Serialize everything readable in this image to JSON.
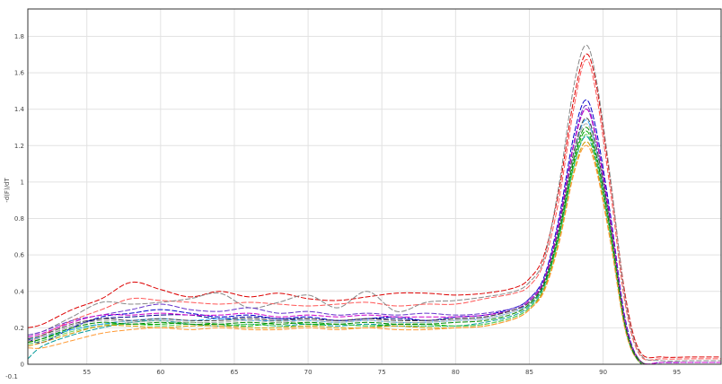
{
  "chart_data": {
    "type": "line",
    "title": "",
    "xlabel": "",
    "ylabel": "-d(F)/dT",
    "xlim": [
      51,
      98
    ],
    "ylim": [
      0,
      1.95
    ],
    "x_ticks": [
      55,
      60,
      65,
      70,
      75,
      80,
      85,
      90,
      95
    ],
    "x_tick_labels": [
      "55",
      "60",
      "65",
      "70",
      "75",
      "80",
      "85",
      "90",
      "95"
    ],
    "y_ticks": [
      0,
      0.2,
      0.4,
      0.6,
      0.8,
      1,
      1.2,
      1.4,
      1.6,
      1.8
    ],
    "y_tick_labels": [
      "0",
      "0.2",
      "0.4",
      "0.6",
      "0.8",
      "1",
      "1.2",
      "1.4",
      "1.6",
      "1.8"
    ],
    "corner_label": "-0.1",
    "grid": true,
    "legend": "none",
    "x": [
      51,
      52,
      54,
      56,
      58,
      60,
      62,
      64,
      66,
      68,
      70,
      72,
      74,
      76,
      78,
      80,
      82,
      84,
      85,
      86,
      87,
      88,
      88.8,
      89.5,
      90.5,
      91.5,
      92.5,
      94,
      96,
      98
    ],
    "series": [
      {
        "color": "#dd0000",
        "values": [
          0.2,
          0.22,
          0.3,
          0.36,
          0.45,
          0.41,
          0.37,
          0.4,
          0.37,
          0.39,
          0.36,
          0.35,
          0.37,
          0.39,
          0.39,
          0.38,
          0.39,
          0.42,
          0.47,
          0.6,
          0.95,
          1.45,
          1.7,
          1.55,
          1.0,
          0.38,
          0.07,
          0.04,
          0.04,
          0.04
        ]
      },
      {
        "color": "#ff5555",
        "values": [
          0.12,
          0.16,
          0.24,
          0.3,
          0.36,
          0.35,
          0.34,
          0.33,
          0.34,
          0.33,
          0.32,
          0.33,
          0.34,
          0.32,
          0.33,
          0.33,
          0.36,
          0.39,
          0.43,
          0.56,
          0.9,
          1.4,
          1.67,
          1.5,
          0.95,
          0.33,
          0.05,
          0.03,
          0.03,
          0.03
        ]
      },
      {
        "color": "#888888",
        "values": [
          0.16,
          0.18,
          0.26,
          0.34,
          0.33,
          0.34,
          0.36,
          0.39,
          0.31,
          0.34,
          0.38,
          0.31,
          0.4,
          0.29,
          0.34,
          0.35,
          0.37,
          0.4,
          0.45,
          0.58,
          0.98,
          1.52,
          1.75,
          1.58,
          1.02,
          0.36,
          0.06,
          0.02,
          0.02,
          0.02
        ]
      },
      {
        "color": "#0000cc",
        "values": [
          0.14,
          0.12,
          0.2,
          0.26,
          0.28,
          0.3,
          0.28,
          0.26,
          0.27,
          0.25,
          0.26,
          0.24,
          0.25,
          0.26,
          0.24,
          0.26,
          0.27,
          0.31,
          0.36,
          0.48,
          0.8,
          1.25,
          1.45,
          1.3,
          0.82,
          0.25,
          0.02,
          0.01,
          0.01,
          0.01
        ]
      },
      {
        "color": "#000088",
        "values": [
          0.13,
          0.15,
          0.21,
          0.25,
          0.26,
          0.27,
          0.27,
          0.25,
          0.26,
          0.25,
          0.25,
          0.24,
          0.25,
          0.25,
          0.24,
          0.25,
          0.26,
          0.3,
          0.35,
          0.46,
          0.76,
          1.2,
          1.4,
          1.25,
          0.78,
          0.22,
          0.02,
          0.0,
          0.0,
          0.0
        ]
      },
      {
        "color": "#6633cc",
        "values": [
          0.16,
          0.18,
          0.24,
          0.27,
          0.3,
          0.33,
          0.3,
          0.29,
          0.31,
          0.28,
          0.29,
          0.27,
          0.28,
          0.27,
          0.28,
          0.27,
          0.28,
          0.31,
          0.36,
          0.47,
          0.78,
          1.21,
          1.42,
          1.26,
          0.8,
          0.24,
          0.02,
          0.01,
          0.01,
          0.01
        ]
      },
      {
        "color": "#009999",
        "values": [
          0.03,
          0.1,
          0.16,
          0.2,
          0.23,
          0.24,
          0.22,
          0.21,
          0.22,
          0.21,
          0.22,
          0.21,
          0.22,
          0.21,
          0.21,
          0.21,
          0.23,
          0.27,
          0.32,
          0.43,
          0.7,
          1.08,
          1.25,
          1.12,
          0.7,
          0.2,
          0.01,
          -0.01,
          -0.01,
          -0.01
        ]
      },
      {
        "color": "#00aa00",
        "values": [
          0.12,
          0.14,
          0.19,
          0.22,
          0.22,
          0.22,
          0.23,
          0.22,
          0.21,
          0.23,
          0.22,
          0.22,
          0.21,
          0.22,
          0.22,
          0.21,
          0.22,
          0.26,
          0.31,
          0.42,
          0.7,
          1.1,
          1.28,
          1.14,
          0.72,
          0.21,
          0.02,
          -0.01,
          -0.01,
          -0.01
        ]
      },
      {
        "color": "#55cc55",
        "values": [
          0.11,
          0.13,
          0.18,
          0.21,
          0.22,
          0.21,
          0.22,
          0.21,
          0.22,
          0.21,
          0.21,
          0.22,
          0.21,
          0.21,
          0.21,
          0.21,
          0.22,
          0.26,
          0.31,
          0.42,
          0.69,
          1.08,
          1.26,
          1.13,
          0.71,
          0.2,
          0.01,
          -0.02,
          -0.02,
          -0.02
        ]
      },
      {
        "color": "#cc9900",
        "values": [
          0.1,
          0.12,
          0.17,
          0.21,
          0.21,
          0.2,
          0.21,
          0.21,
          0.2,
          0.2,
          0.21,
          0.2,
          0.2,
          0.21,
          0.2,
          0.2,
          0.21,
          0.25,
          0.3,
          0.41,
          0.67,
          1.05,
          1.22,
          1.1,
          0.68,
          0.19,
          0.01,
          -0.01,
          -0.01,
          -0.01
        ]
      },
      {
        "color": "#ff9933",
        "values": [
          0.09,
          0.09,
          0.13,
          0.17,
          0.19,
          0.2,
          0.19,
          0.2,
          0.19,
          0.19,
          0.2,
          0.19,
          0.2,
          0.19,
          0.19,
          0.2,
          0.21,
          0.25,
          0.3,
          0.4,
          0.66,
          1.04,
          1.2,
          1.08,
          0.67,
          0.19,
          0.01,
          0.0,
          0.0,
          0.0
        ]
      },
      {
        "color": "#33aaff",
        "values": [
          0.14,
          0.15,
          0.19,
          0.22,
          0.24,
          0.25,
          0.24,
          0.25,
          0.24,
          0.24,
          0.24,
          0.23,
          0.24,
          0.23,
          0.23,
          0.24,
          0.25,
          0.29,
          0.34,
          0.45,
          0.74,
          1.15,
          1.34,
          1.19,
          0.75,
          0.22,
          0.02,
          0.0,
          0.0,
          0.0
        ]
      },
      {
        "color": "#cc00cc",
        "values": [
          0.15,
          0.17,
          0.23,
          0.27,
          0.27,
          0.28,
          0.27,
          0.27,
          0.28,
          0.26,
          0.27,
          0.26,
          0.27,
          0.26,
          0.26,
          0.26,
          0.27,
          0.3,
          0.35,
          0.46,
          0.77,
          1.2,
          1.4,
          1.25,
          0.79,
          0.23,
          0.02,
          0.01,
          0.01,
          0.01
        ]
      },
      {
        "color": "#444444",
        "values": [
          0.14,
          0.16,
          0.22,
          0.25,
          0.24,
          0.25,
          0.24,
          0.24,
          0.25,
          0.24,
          0.25,
          0.24,
          0.25,
          0.24,
          0.24,
          0.25,
          0.26,
          0.3,
          0.34,
          0.45,
          0.74,
          1.16,
          1.35,
          1.21,
          0.76,
          0.22,
          0.02,
          0.0,
          0.0,
          0.0
        ]
      },
      {
        "color": "#aaaaaa",
        "values": [
          0.13,
          0.15,
          0.21,
          0.24,
          0.23,
          0.24,
          0.23,
          0.23,
          0.24,
          0.23,
          0.24,
          0.23,
          0.24,
          0.23,
          0.23,
          0.24,
          0.25,
          0.29,
          0.33,
          0.44,
          0.73,
          1.14,
          1.32,
          1.18,
          0.74,
          0.21,
          0.01,
          -0.01,
          -0.01,
          -0.01
        ]
      },
      {
        "color": "#008800",
        "values": [
          0.12,
          0.14,
          0.2,
          0.23,
          0.22,
          0.23,
          0.22,
          0.22,
          0.23,
          0.22,
          0.23,
          0.22,
          0.23,
          0.22,
          0.22,
          0.23,
          0.24,
          0.28,
          0.33,
          0.44,
          0.72,
          1.12,
          1.3,
          1.16,
          0.73,
          0.21,
          0.01,
          -0.02,
          -0.02,
          -0.02
        ]
      }
    ]
  }
}
